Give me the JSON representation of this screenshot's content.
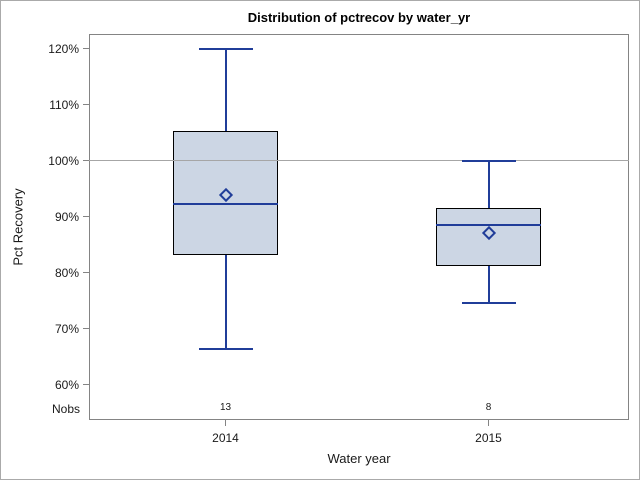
{
  "title": "Distribution of pctrecov by water_yr",
  "y_axis": {
    "label": "Pct Recovery",
    "tick_labels": [
      "120%",
      "110%",
      "100%",
      "90%",
      "80%",
      "70%",
      "60%"
    ]
  },
  "x_axis": {
    "label": "Water year",
    "tick_labels": [
      "2014",
      "2015"
    ]
  },
  "nobs": {
    "row_label": "Nobs",
    "values": [
      "13",
      "8"
    ]
  },
  "colors": {
    "box_fill": "#ccd6e4",
    "line_blue": "#203d99",
    "box_border": "#000000",
    "frame_gray": "#848484",
    "refline_gray": "#a6a6a6",
    "text": "#1a1a1a",
    "canvas_border": "#aaaaaa"
  },
  "chart_data": {
    "type": "boxplot",
    "title": "Distribution of pctrecov by water_yr",
    "xlabel": "Water year",
    "ylabel": "Pct Recovery",
    "y_ticks_pct": [
      120,
      110,
      100,
      90,
      80,
      70,
      60
    ],
    "ylim": [
      53.8,
      122.6
    ],
    "refline_pct": 100,
    "grid": "off",
    "legend": "none",
    "categories": [
      "2014",
      "2015"
    ],
    "groups": [
      {
        "category": "2014",
        "nobs": "13",
        "whisker_high": 119.9,
        "q3": 105.2,
        "mean": 93.8,
        "median": 92.2,
        "q1": 83.1,
        "whisker_low": 66.3
      },
      {
        "category": "2015",
        "nobs": "8",
        "whisker_high": 100.0,
        "q3": 91.5,
        "mean": 87.1,
        "median": 88.4,
        "q1": 81.1,
        "whisker_low": 74.5
      }
    ]
  }
}
